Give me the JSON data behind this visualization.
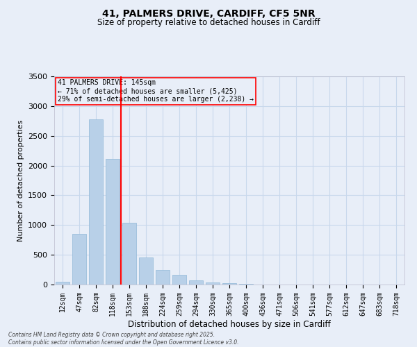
{
  "title1": "41, PALMERS DRIVE, CARDIFF, CF5 5NR",
  "title2": "Size of property relative to detached houses in Cardiff",
  "xlabel": "Distribution of detached houses by size in Cardiff",
  "ylabel": "Number of detached properties",
  "bar_labels": [
    "12sqm",
    "47sqm",
    "82sqm",
    "118sqm",
    "153sqm",
    "188sqm",
    "224sqm",
    "259sqm",
    "294sqm",
    "330sqm",
    "365sqm",
    "400sqm",
    "436sqm",
    "471sqm",
    "506sqm",
    "541sqm",
    "577sqm",
    "612sqm",
    "647sqm",
    "683sqm",
    "718sqm"
  ],
  "bar_values": [
    50,
    850,
    2780,
    2110,
    1040,
    450,
    250,
    160,
    65,
    40,
    18,
    10,
    4,
    2,
    1,
    0,
    0,
    0,
    0,
    0,
    0
  ],
  "bar_color": "#b8d0e8",
  "bar_edgecolor": "#90b8d8",
  "grid_color": "#c8d8ec",
  "background_color": "#e8eef8",
  "vline_x_idx": 3,
  "vline_color": "red",
  "annotation_title": "41 PALMERS DRIVE: 145sqm",
  "annotation_line1": "← 71% of detached houses are smaller (5,425)",
  "annotation_line2": "29% of semi-detached houses are larger (2,238) →",
  "annotation_box_color": "red",
  "ylim": [
    0,
    3500
  ],
  "yticks": [
    0,
    500,
    1000,
    1500,
    2000,
    2500,
    3000,
    3500
  ],
  "footnote1": "Contains HM Land Registry data © Crown copyright and database right 2025.",
  "footnote2": "Contains public sector information licensed under the Open Government Licence v3.0."
}
